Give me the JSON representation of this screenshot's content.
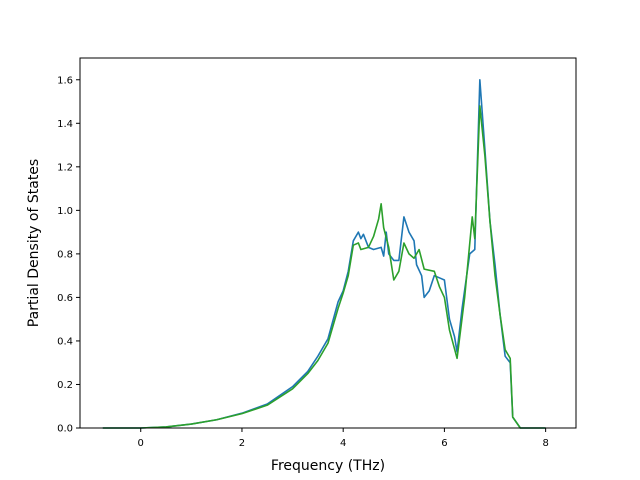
{
  "chart_data": {
    "type": "line",
    "xlabel": "Frequency (THz)",
    "ylabel": "Partial Density of States",
    "xlim": [
      -1.2,
      8.6
    ],
    "ylim": [
      0,
      1.7
    ],
    "xticks": [
      0,
      2,
      4,
      6,
      8
    ],
    "yticks": [
      0.0,
      0.2,
      0.4,
      0.6,
      0.8,
      1.0,
      1.2,
      1.4,
      1.6
    ],
    "grid": false,
    "legend": "none",
    "series": [
      {
        "color": "#1f77b4",
        "points": [
          [
            -0.75,
            0.0
          ],
          [
            0.0,
            0.0
          ],
          [
            0.5,
            0.005
          ],
          [
            1.0,
            0.018
          ],
          [
            1.5,
            0.038
          ],
          [
            2.0,
            0.068
          ],
          [
            2.5,
            0.11
          ],
          [
            3.0,
            0.19
          ],
          [
            3.3,
            0.26
          ],
          [
            3.5,
            0.33
          ],
          [
            3.7,
            0.41
          ],
          [
            3.9,
            0.58
          ],
          [
            4.0,
            0.63
          ],
          [
            4.1,
            0.72
          ],
          [
            4.2,
            0.86
          ],
          [
            4.3,
            0.9
          ],
          [
            4.35,
            0.87
          ],
          [
            4.4,
            0.89
          ],
          [
            4.5,
            0.83
          ],
          [
            4.6,
            0.82
          ],
          [
            4.75,
            0.83
          ],
          [
            4.8,
            0.79
          ],
          [
            4.85,
            0.9
          ],
          [
            4.9,
            0.8
          ],
          [
            5.0,
            0.77
          ],
          [
            5.1,
            0.77
          ],
          [
            5.2,
            0.97
          ],
          [
            5.3,
            0.9
          ],
          [
            5.4,
            0.86
          ],
          [
            5.45,
            0.75
          ],
          [
            5.55,
            0.7
          ],
          [
            5.6,
            0.6
          ],
          [
            5.7,
            0.63
          ],
          [
            5.8,
            0.7
          ],
          [
            5.9,
            0.69
          ],
          [
            6.0,
            0.68
          ],
          [
            6.1,
            0.5
          ],
          [
            6.2,
            0.42
          ],
          [
            6.25,
            0.35
          ],
          [
            6.35,
            0.55
          ],
          [
            6.5,
            0.8
          ],
          [
            6.6,
            0.82
          ],
          [
            6.7,
            1.6
          ],
          [
            6.8,
            1.28
          ],
          [
            6.9,
            0.95
          ],
          [
            7.0,
            0.75
          ],
          [
            7.1,
            0.52
          ],
          [
            7.2,
            0.33
          ],
          [
            7.3,
            0.3
          ],
          [
            7.35,
            0.05
          ],
          [
            7.5,
            0.0
          ],
          [
            8.0,
            0.0
          ]
        ]
      },
      {
        "color": "#2ca02c",
        "points": [
          [
            -0.75,
            0.0
          ],
          [
            0.0,
            0.0
          ],
          [
            0.5,
            0.005
          ],
          [
            1.0,
            0.018
          ],
          [
            1.5,
            0.038
          ],
          [
            2.0,
            0.066
          ],
          [
            2.5,
            0.105
          ],
          [
            3.0,
            0.18
          ],
          [
            3.3,
            0.25
          ],
          [
            3.5,
            0.31
          ],
          [
            3.7,
            0.39
          ],
          [
            3.9,
            0.55
          ],
          [
            4.0,
            0.62
          ],
          [
            4.1,
            0.7
          ],
          [
            4.2,
            0.84
          ],
          [
            4.3,
            0.85
          ],
          [
            4.35,
            0.82
          ],
          [
            4.5,
            0.83
          ],
          [
            4.6,
            0.88
          ],
          [
            4.7,
            0.96
          ],
          [
            4.75,
            1.03
          ],
          [
            4.8,
            0.92
          ],
          [
            4.9,
            0.83
          ],
          [
            5.0,
            0.68
          ],
          [
            5.1,
            0.72
          ],
          [
            5.2,
            0.85
          ],
          [
            5.3,
            0.8
          ],
          [
            5.4,
            0.78
          ],
          [
            5.5,
            0.82
          ],
          [
            5.6,
            0.73
          ],
          [
            5.8,
            0.72
          ],
          [
            5.9,
            0.65
          ],
          [
            6.0,
            0.6
          ],
          [
            6.1,
            0.45
          ],
          [
            6.25,
            0.32
          ],
          [
            6.4,
            0.6
          ],
          [
            6.55,
            0.97
          ],
          [
            6.6,
            0.87
          ],
          [
            6.7,
            1.48
          ],
          [
            6.8,
            1.25
          ],
          [
            6.9,
            0.95
          ],
          [
            7.0,
            0.7
          ],
          [
            7.1,
            0.52
          ],
          [
            7.2,
            0.36
          ],
          [
            7.3,
            0.32
          ],
          [
            7.35,
            0.05
          ],
          [
            7.5,
            0.0
          ],
          [
            8.0,
            0.0
          ]
        ]
      }
    ]
  }
}
